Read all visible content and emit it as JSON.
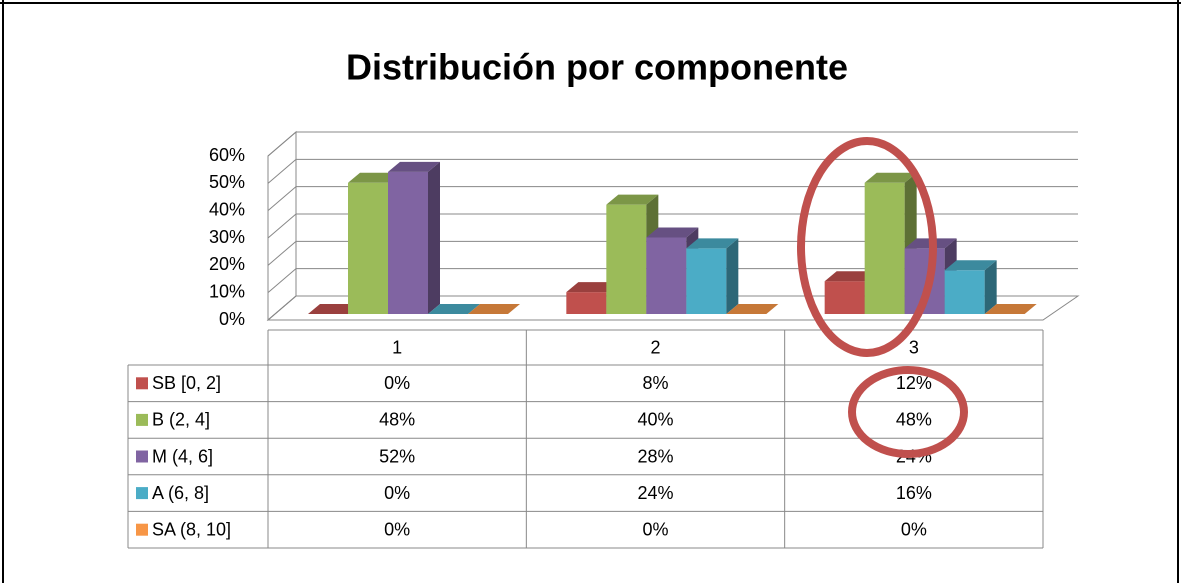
{
  "chart_data": {
    "type": "bar3d",
    "title": "Distribución por componente",
    "categories": [
      "1",
      "2",
      "3"
    ],
    "series": [
      {
        "name": "SB [0, 2]",
        "color": "#c0504d",
        "values": [
          0,
          8,
          12
        ],
        "value_labels": [
          "0%",
          "8%",
          "12%"
        ]
      },
      {
        "name": "B (2, 4]",
        "color": "#9bbb59",
        "values": [
          48,
          40,
          48
        ],
        "value_labels": [
          "48%",
          "40%",
          "48%"
        ]
      },
      {
        "name": "M (4, 6]",
        "color": "#8064a2",
        "values": [
          52,
          28,
          24
        ],
        "value_labels": [
          "52%",
          "28%",
          "24%"
        ]
      },
      {
        "name": "A (6, 8]",
        "color": "#4bacc6",
        "values": [
          0,
          24,
          16
        ],
        "value_labels": [
          "0%",
          "24%",
          "16%"
        ]
      },
      {
        "name": "SA (8, 10]",
        "color": "#f79646",
        "values": [
          0,
          0,
          0
        ],
        "value_labels": [
          "0%",
          "0%",
          "0%"
        ]
      }
    ],
    "ylim": [
      0,
      60
    ],
    "yticks": [
      {
        "value": 0,
        "label": "0%"
      },
      {
        "value": 10,
        "label": "10%"
      },
      {
        "value": 20,
        "label": "20%"
      },
      {
        "value": 30,
        "label": "30%"
      },
      {
        "value": 40,
        "label": "40%"
      },
      {
        "value": 50,
        "label": "50%"
      },
      {
        "value": 60,
        "label": "60%"
      }
    ],
    "grid": true
  }
}
